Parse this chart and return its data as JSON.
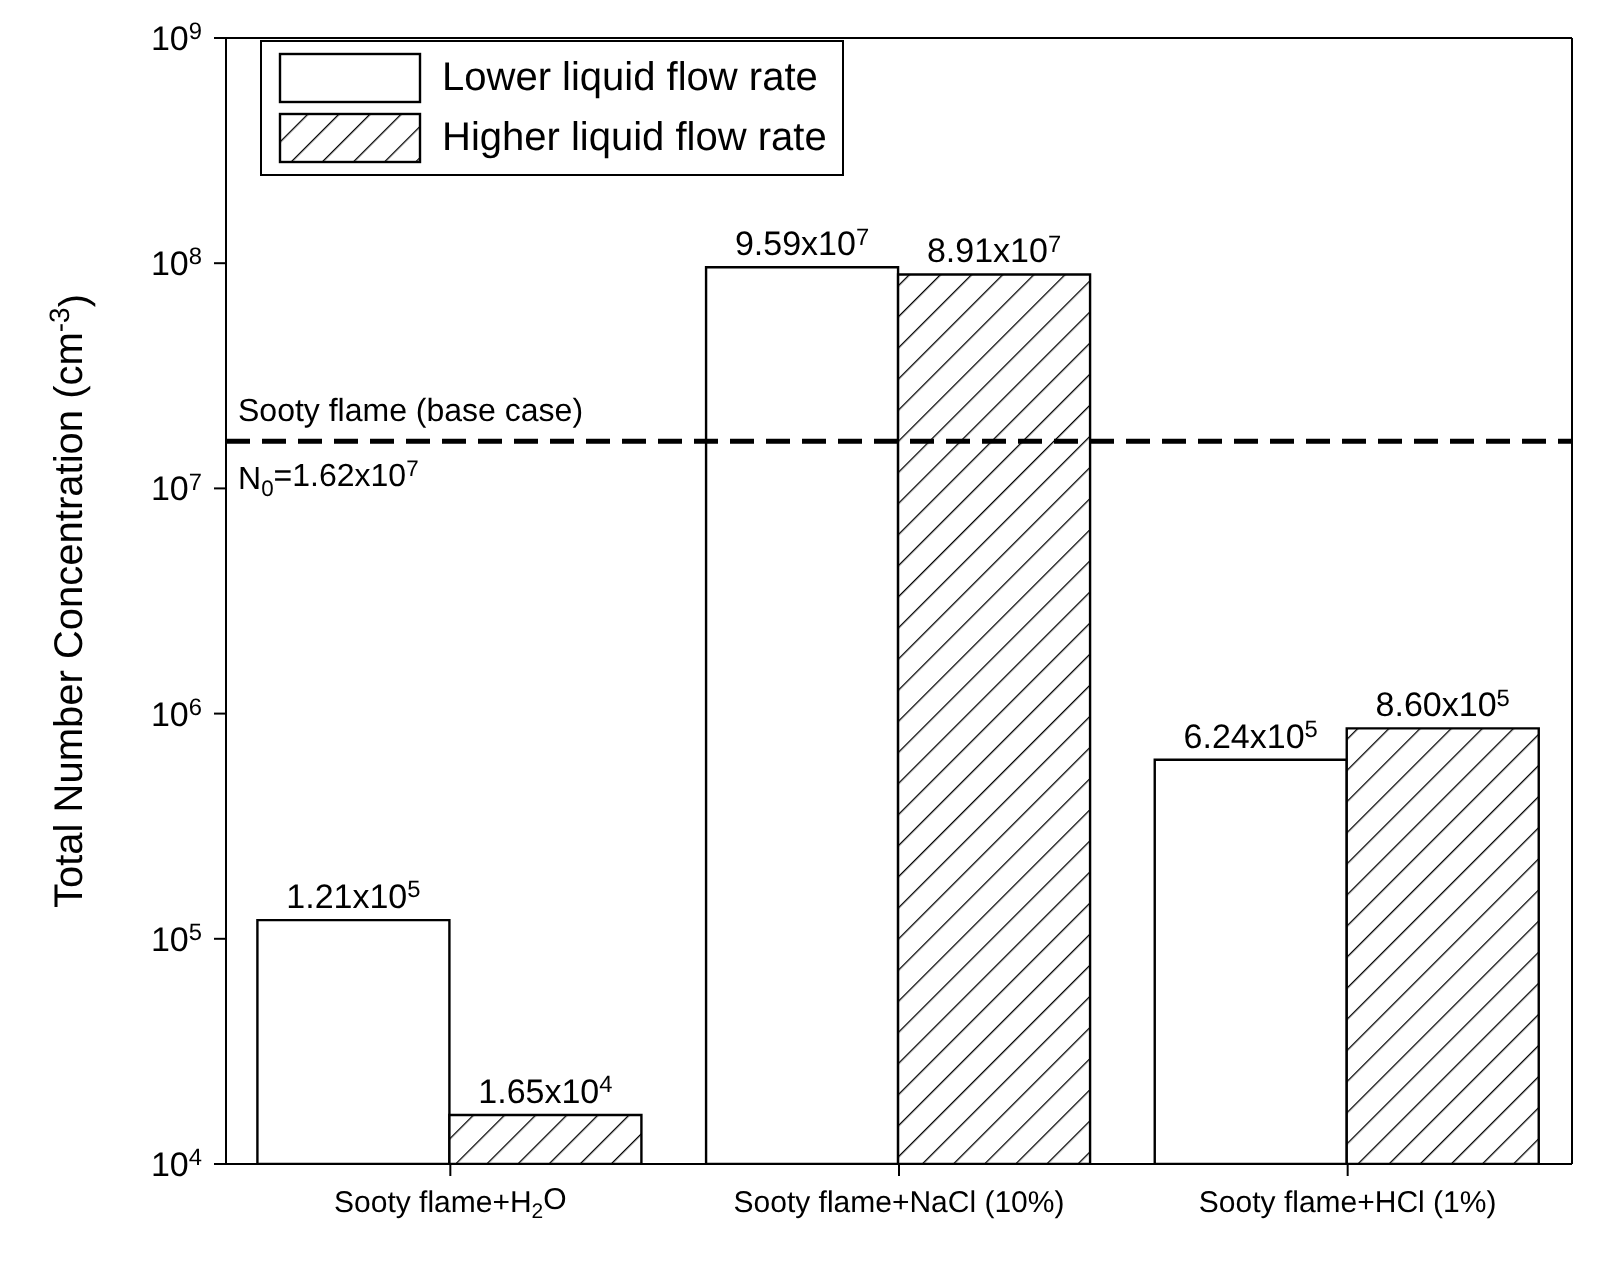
{
  "chart_data": {
    "type": "bar",
    "ylabel": "Total Number Concentration (cm$^{-3}$)",
    "categories": [
      "Sooty flame+H$_{2}$O",
      "Sooty flame+NaCl (10%)",
      "Sooty flame+HCl (1%)"
    ],
    "series": [
      {
        "name": "Lower liquid flow rate",
        "color": "#ffffff",
        "values": [
          121000,
          95900000,
          624000
        ],
        "value_labels": [
          "1.21x10$^{5}$",
          "9.59x10$^{7}$",
          "6.24x10$^{5}$"
        ]
      },
      {
        "name": "Higher liquid flow rate",
        "color": "#000000",
        "values": [
          16500,
          89100000,
          860000
        ],
        "value_labels": [
          "1.65x10$^{4}$",
          "8.91x10$^{7}$",
          "8.60x10$^{5}$"
        ]
      }
    ],
    "log": "y",
    "ylim": [
      10000,
      1000000000
    ],
    "yticks": [
      {
        "value": 10000,
        "label": "10$^{4}$"
      },
      {
        "value": 100000,
        "label": "10$^{5}$"
      },
      {
        "value": 1000000,
        "label": "10$^{6}$"
      },
      {
        "value": 10000000,
        "label": "10$^{7}$"
      },
      {
        "value": 100000000,
        "label": "10$^{8}$"
      },
      {
        "value": 1000000000,
        "label": "10$^{9}$"
      }
    ],
    "ref_lines": [
      {
        "axis": "y",
        "value": 16200000,
        "label": "Sooty flame (base case)",
        "color": "#000000",
        "line_style": "dashed"
      }
    ],
    "annotations": [
      {
        "text": "N$_{0}$=1.62x10$^{7}$",
        "y": 16200000
      }
    ],
    "legend": "top left",
    "grid": false
  }
}
